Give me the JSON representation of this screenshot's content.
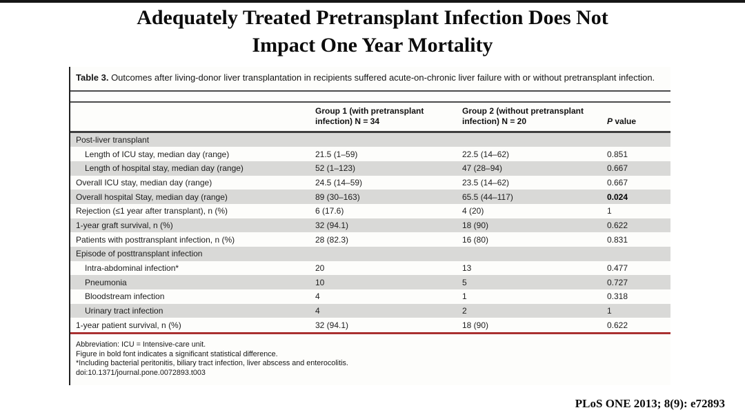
{
  "page": {
    "title_line1": "Adequately Treated Pretransplant Infection Does Not",
    "title_line2": "Impact One Year Mortality",
    "citation": "PLoS ONE 2013; 8(9): e72893"
  },
  "colors": {
    "top_bar": "#161616",
    "rule": "#4a4a4a",
    "stripe": "#d9d9d7",
    "red_rule": "#a93030"
  },
  "table": {
    "caption_label": "Table 3.",
    "caption_text": " Outcomes after living-donor liver transplantation in recipients suffered acute-on-chronic liver failure with or without pretransplant infection.",
    "header": {
      "group1": "Group 1 (with pretransplant infection) N = 34",
      "group2": "Group 2 (without pretransplant infection) N = 20",
      "p_italic": "P",
      "p_rest": " value"
    },
    "rows": [
      {
        "label": "Post-liver transplant",
        "g1": "",
        "g2": "",
        "p": "",
        "section": true,
        "shaded": true
      },
      {
        "label": "Length of ICU stay, median day (range)",
        "g1": "21.5 (1–59)",
        "g2": "22.5 (14–62)",
        "p": "0.851",
        "indent": true
      },
      {
        "label": "Length of hospital stay, median day (range)",
        "g1": "52 (1–123)",
        "g2": "47 (28–94)",
        "p": "0.667",
        "indent": true,
        "shaded": true
      },
      {
        "label": "Overall ICU stay, median day (range)",
        "g1": "24.5 (14–59)",
        "g2": "23.5 (14–62)",
        "p": "0.667"
      },
      {
        "label": "Overall hospital Stay, median day (range)",
        "g1": "89 (30–163)",
        "g2": "65.5 (44–117)",
        "p": "0.024",
        "shaded": true,
        "bold_p": true
      },
      {
        "label": "Rejection (≤1 year after transplant), n (%)",
        "g1": "6 (17.6)",
        "g2": "4 (20)",
        "p": "1"
      },
      {
        "label": "1-year graft survival, n (%)",
        "g1": "32 (94.1)",
        "g2": "18 (90)",
        "p": "0.622",
        "shaded": true
      },
      {
        "label": "Patients with posttransplant infection, n (%)",
        "g1": "28 (82.3)",
        "g2": "16 (80)",
        "p": "0.831"
      },
      {
        "label": "Episode of posttransplant infection",
        "g1": "",
        "g2": "",
        "p": "",
        "section": true,
        "shaded": true
      },
      {
        "label": "Intra-abdominal infection*",
        "g1": "20",
        "g2": "13",
        "p": "0.477",
        "indent": true
      },
      {
        "label": "Pneumonia",
        "g1": "10",
        "g2": "5",
        "p": "0.727",
        "indent": true,
        "shaded": true
      },
      {
        "label": "Bloodstream infection",
        "g1": "4",
        "g2": "1",
        "p": "0.318",
        "indent": true
      },
      {
        "label": "Urinary tract infection",
        "g1": "4",
        "g2": "2",
        "p": "1",
        "indent": true,
        "shaded": true
      },
      {
        "label": "1-year patient survival, n (%)",
        "g1": "32 (94.1)",
        "g2": "18 (90)",
        "p": "0.622"
      }
    ],
    "footnotes": [
      "Abbreviation: ICU = Intensive-care unit.",
      "Figure in bold font indicates a significant statistical difference.",
      "*Including bacterial peritonitis, biliary tract infection, liver abscess and enterocolitis.",
      "doi:10.1371/journal.pone.0072893.t003"
    ]
  }
}
